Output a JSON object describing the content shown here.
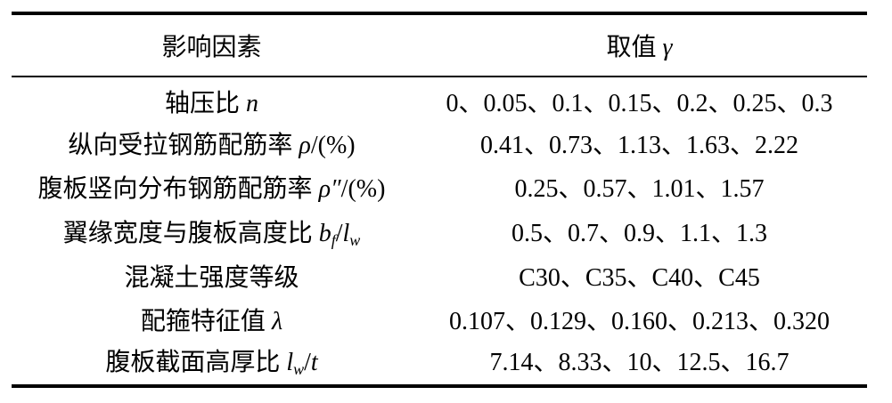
{
  "table": {
    "header": {
      "factor": "影响因素",
      "value_label": "取值",
      "value_symbol": "γ"
    },
    "rows": [
      {
        "factor": "轴压比",
        "symbol": "n",
        "values": "0、0.05、0.1、0.15、0.2、0.25、0.3"
      },
      {
        "factor": "纵向受拉钢筋配筋率",
        "symbol": "ρ",
        "unit": "/(%)",
        "values": "0.41、0.73、1.13、1.63、2.22"
      },
      {
        "factor": "腹板竖向分布钢筋配筋率",
        "symbol": "ρ″",
        "unit": "/(%)",
        "values": "0.25、0.57、1.01、1.57"
      },
      {
        "factor": "翼缘宽度与腹板高度比",
        "symbol_main": "b",
        "symbol_sub": "f",
        "slash": "/",
        "symbol2_main": "l",
        "symbol2_sub": "w",
        "values": "0.5、0.7、0.9、1.1、1.3"
      },
      {
        "factor": "混凝土强度等级",
        "values": "C30、C35、C40、C45"
      },
      {
        "factor": "配箍特征值",
        "symbol": "λ",
        "values": "0.107、0.129、0.160、0.213、0.320"
      },
      {
        "factor": "腹板截面高厚比",
        "symbol_main": "l",
        "symbol_sub": "w",
        "slash": "/",
        "symbol2": "t",
        "values": "7.14、8.33、10、12.5、16.7"
      }
    ]
  }
}
